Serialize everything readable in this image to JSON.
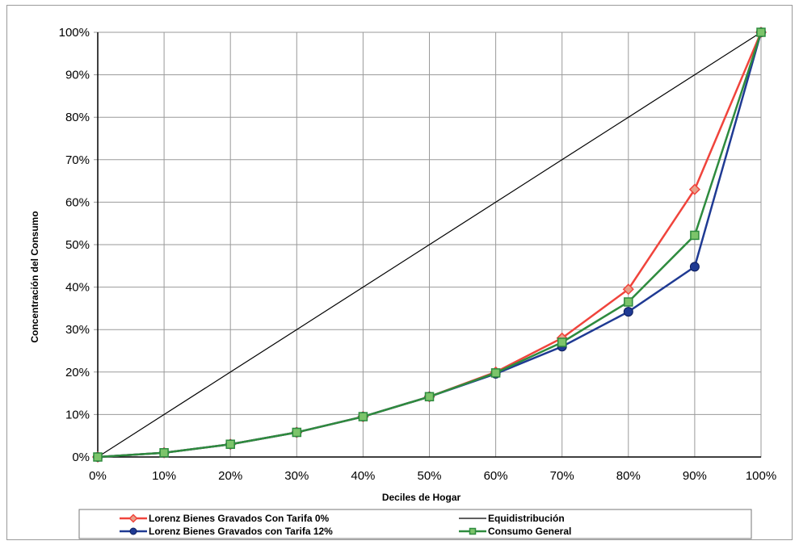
{
  "chart_data": {
    "type": "line",
    "title": "",
    "xlabel": "Deciles de Hogar",
    "ylabel": "Concentración del Consumo",
    "x": [
      0,
      10,
      20,
      30,
      40,
      50,
      60,
      70,
      80,
      90,
      100
    ],
    "x_tick_labels": [
      "0%",
      "10%",
      "20%",
      "30%",
      "40%",
      "50%",
      "60%",
      "70%",
      "80%",
      "90%",
      "100%"
    ],
    "y_tick_labels": [
      "0%",
      "10%",
      "20%",
      "30%",
      "40%",
      "50%",
      "60%",
      "70%",
      "80%",
      "90%",
      "100%"
    ],
    "xlim": [
      0,
      100
    ],
    "ylim": [
      0,
      100
    ],
    "grid": true,
    "legend_position": "bottom",
    "series": [
      {
        "name": "Lorenz Bienes Gravados Con Tarifa 0%",
        "color": "#f0443c",
        "marker": "diamond",
        "values": [
          0,
          1,
          3,
          5.8,
          9.5,
          14.2,
          20,
          28,
          39.5,
          63,
          100
        ]
      },
      {
        "name": "Equidistribución",
        "color": "#000000",
        "marker": "none",
        "values": [
          0,
          10,
          20,
          30,
          40,
          50,
          60,
          70,
          80,
          90,
          100
        ]
      },
      {
        "name": "Lorenz Bienes Gravados con Tarifa 12%",
        "color": "#1f3a93",
        "marker": "circle",
        "values": [
          0,
          1,
          3,
          5.8,
          9.5,
          14.2,
          19.6,
          26,
          34.2,
          44.8,
          100
        ]
      },
      {
        "name": "Consumo General",
        "color": "#2e8b3e",
        "marker": "square",
        "values": [
          0,
          1,
          3,
          5.8,
          9.5,
          14.2,
          19.8,
          27,
          36.5,
          52.2,
          100
        ]
      }
    ]
  }
}
